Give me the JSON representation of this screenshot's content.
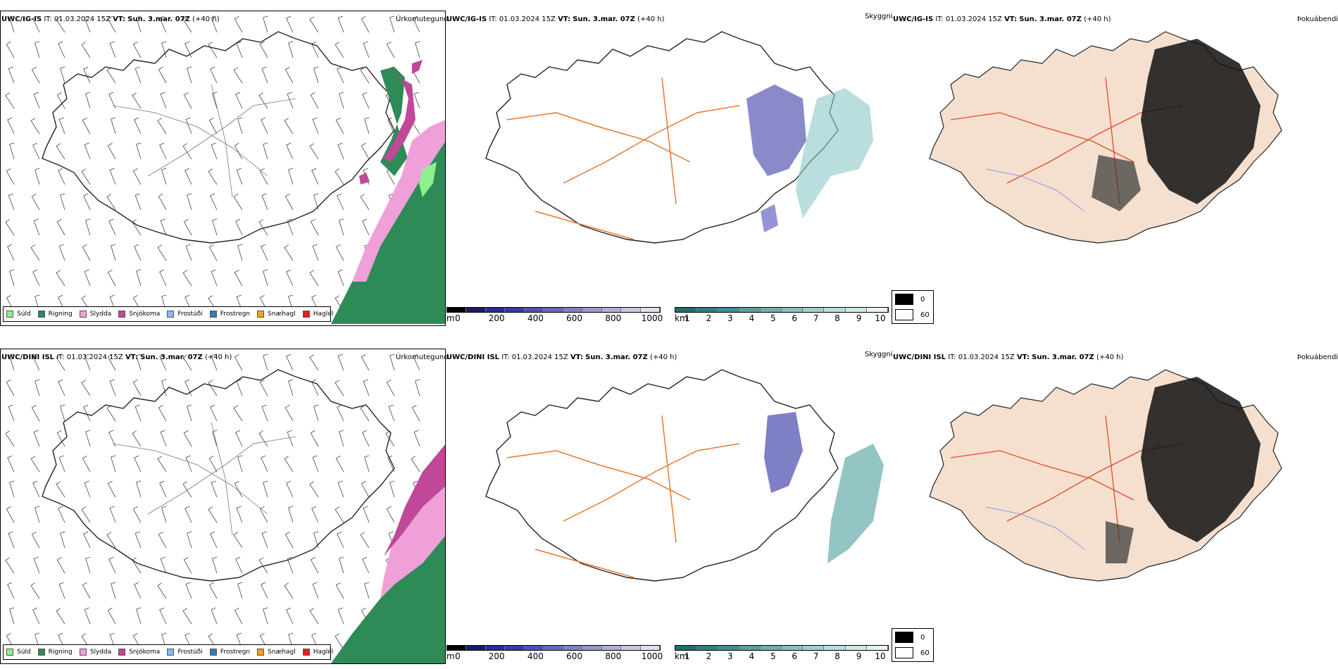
{
  "panels": [
    {
      "model": "UWC/IG-IS",
      "it_label": "IT:",
      "it": "01.03.2024 15Z",
      "vt_label": "VT:",
      "vt": "Sun. 3.mar. 07Z",
      "lead": "(+40 h)",
      "title": "Úrkomutegund"
    },
    {
      "model": "UWC/IG-IS",
      "it_label": "IT:",
      "it": "01.03.2024 15Z",
      "vt_label": "VT:",
      "vt": "Sun. 3.mar. 07Z",
      "lead": "(+40 h)",
      "title": "Skyggni"
    },
    {
      "model": "UWC/IG-IS",
      "it_label": "IT:",
      "it": "01.03.2024 15Z",
      "vt_label": "VT:",
      "vt": "Sun. 3.mar. 07Z",
      "lead": "(+40 h)",
      "title": "Þokuábendi"
    },
    {
      "model": "UWC/DINI ISL",
      "it_label": "IT:",
      "it": "01.03.2024 15Z",
      "vt_label": "VT:",
      "vt": "Sun. 3.mar. 07Z",
      "lead": "(+40 h)",
      "title": "Úrkomutegund"
    },
    {
      "model": "UWC/DINI ISL",
      "it_label": "IT:",
      "it": "01.03.2024 15Z",
      "vt_label": "VT:",
      "vt": "Sun. 3.mar. 07Z",
      "lead": "(+40 h)",
      "title": "Skyggni"
    },
    {
      "model": "UWC/DINI ISL",
      "it_label": "IT:",
      "it": "01.03.2024 15Z",
      "vt_label": "VT:",
      "vt": "Sun. 3.mar. 07Z",
      "lead": "(+40 h)",
      "title": "Þokuábendi"
    }
  ],
  "precip_legend": [
    {
      "label": "Súld",
      "color": "#8ef08e"
    },
    {
      "label": "Rigning",
      "color": "#2e8b57"
    },
    {
      "label": "Slydda",
      "color": "#f0a0d8"
    },
    {
      "label": "Snjókoma",
      "color": "#c04898"
    },
    {
      "label": "Frostúði",
      "color": "#88b8f0"
    },
    {
      "label": "Frostregn",
      "color": "#2e7cc8"
    },
    {
      "label": "Snæhagl",
      "color": "#f0a020"
    },
    {
      "label": "Haglél",
      "color": "#e02020"
    }
  ],
  "ceiling_bar": {
    "unit": "m",
    "ticks": [
      "0",
      "200",
      "400",
      "600",
      "800",
      "1000"
    ],
    "colors": [
      "#000000",
      "#1a1a70",
      "#2a2aa0",
      "#3838b0",
      "#5050b8",
      "#6868c0",
      "#8080c8",
      "#9898d0",
      "#b0b0d8",
      "#c8c8e4",
      "#e0e0f0"
    ]
  },
  "vis_bar": {
    "unit": "km",
    "ticks": [
      "1",
      "2",
      "3",
      "4",
      "5",
      "6",
      "7",
      "8",
      "9",
      "10"
    ],
    "colors": [
      "#1e7070",
      "#2e8080",
      "#3e9090",
      "#58a0a0",
      "#70b0b0",
      "#88c0c0",
      "#a0d0d0",
      "#b8dede",
      "#d0eaea",
      "#e8f4f4"
    ]
  },
  "cover_legend": [
    {
      "label": "0",
      "color": "#000000"
    },
    {
      "label": "60",
      "color": "#ffffff"
    }
  ],
  "colors": {
    "land_fog": "#f5e0d0",
    "roads": "#e87830",
    "roads_fog": "#e04a2a",
    "rivers": "#8898f0",
    "coast": "#222222"
  }
}
